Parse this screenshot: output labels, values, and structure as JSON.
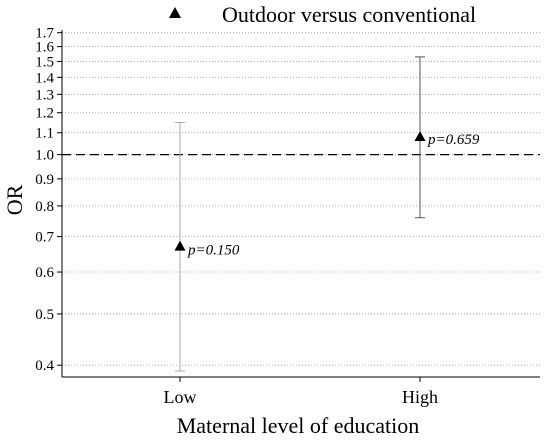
{
  "chart_data": {
    "type": "scatter",
    "title": "",
    "xlabel": "Maternal level of education",
    "ylabel": "OR",
    "yscale": "log",
    "ylim": [
      0.38,
      1.72
    ],
    "yticks": [
      "0.4",
      "0.5",
      "0.6",
      "0.7",
      "0.8",
      "0.9",
      "1.0",
      "1.1",
      "1.2",
      "1.3",
      "1.4",
      "1.5",
      "1.6",
      "1.7"
    ],
    "grid": true,
    "reference_line": 1.0,
    "legend_position": "top",
    "categories": [
      "Low",
      "High"
    ],
    "series": [
      {
        "name": "Outdoor versus conventional",
        "marker": "triangle",
        "values": [
          0.67,
          1.08
        ],
        "ci_low": [
          0.39,
          0.76
        ],
        "ci_high": [
          1.15,
          1.53
        ],
        "annotations": [
          "p=0.150",
          "p=0.659"
        ],
        "colors": [
          "#aaaaaa",
          "#555555"
        ]
      }
    ]
  }
}
